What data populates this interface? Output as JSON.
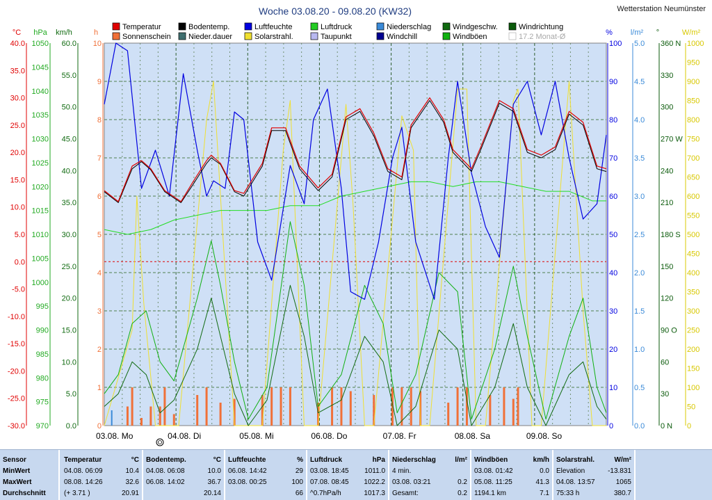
{
  "title": "Woche 03.08.20 - 09.08.20 (KW32)",
  "station": "Wetterstation Neumünster",
  "legend": [
    {
      "label": "Temperatur",
      "color": "#e00000"
    },
    {
      "label": "Bodentemp.",
      "color": "#000000"
    },
    {
      "label": "Luftfeuchte",
      "color": "#0000e0"
    },
    {
      "label": "Luftdruck",
      "color": "#22cc22"
    },
    {
      "label": "Niederschlag",
      "color": "#3a8ad8"
    },
    {
      "label": "Windgeschw.",
      "color": "#106a10"
    },
    {
      "label": "Windrichtung",
      "color": "#0a5a0a"
    },
    {
      "label": "Sonnenschein",
      "color": "#f07038"
    },
    {
      "label": "Nieder.dauer",
      "color": "#3f6f6f"
    },
    {
      "label": "Solarstrahl.",
      "color": "#f0e030"
    },
    {
      "label": "Taupunkt",
      "color": "#b8b8f0"
    },
    {
      "label": "Windchill",
      "color": "#000090"
    },
    {
      "label": "Windböen",
      "color": "#10b010"
    },
    {
      "label": "17.2 Monat-Ø",
      "color": "#d0d8e0"
    }
  ],
  "axis_units": {
    "temp": "°C",
    "press": "hPa",
    "wind": "km/h",
    "sun": "h",
    "humidity": "%",
    "rain": "l/m²",
    "dir": "°",
    "solar": "W/m²"
  },
  "axes": {
    "temp": {
      "labels": [
        "40.0",
        "35.0",
        "30.0",
        "25.0",
        "20.0",
        "15.0",
        "10.0",
        "5.0",
        "0.0",
        "-5.0",
        "-10.0",
        "-15.0",
        "-20.0",
        "-25.0",
        "-30.0"
      ],
      "color": "#e00000"
    },
    "press": {
      "labels": [
        "1050",
        "1045",
        "1040",
        "1035",
        "1030",
        "1025",
        "1020",
        "1015",
        "1010",
        "1005",
        "1000",
        "995",
        "990",
        "985",
        "980",
        "975",
        "970"
      ],
      "color": "#22aa22"
    },
    "wind": {
      "labels": [
        "60.0",
        "55.0",
        "50.0",
        "45.0",
        "40.0",
        "35.0",
        "30.0",
        "25.0",
        "20.0",
        "15.0",
        "10.0",
        "5.0",
        "0.0"
      ],
      "color": "#106a10"
    },
    "sun": {
      "labels": [
        "10",
        "9",
        "8",
        "7",
        "6",
        "5",
        "4",
        "3",
        "2",
        "1",
        "0"
      ],
      "color": "#f07038"
    },
    "humidity": {
      "labels": [
        "100",
        "90",
        "80",
        "70",
        "60",
        "50",
        "40",
        "30",
        "20",
        "10",
        "0"
      ],
      "color": "#0000e0"
    },
    "rain": {
      "labels": [
        "5.0",
        "4.5",
        "4.0",
        "3.5",
        "3.0",
        "2.5",
        "2.0",
        "1.5",
        "1.0",
        "0.5",
        "0.0"
      ],
      "color": "#3a8ad8"
    },
    "dir": {
      "labels": [
        "360 N",
        "330",
        "300",
        "270 W",
        "240",
        "210",
        "180 S",
        "150",
        "120",
        "90 O",
        "60",
        "30",
        "0 N"
      ],
      "color": "#0a5a0a"
    },
    "solar": {
      "labels": [
        "1000",
        "950",
        "900",
        "850",
        "800",
        "750",
        "700",
        "650",
        "600",
        "550",
        "500",
        "450",
        "400",
        "350",
        "300",
        "250",
        "200",
        "150",
        "100",
        "50",
        "0"
      ],
      "color": "#d8c800"
    }
  },
  "days": [
    "03.08.  Mo",
    "04.08.  Di",
    "05.08.  Mi",
    "06.08.  Do",
    "07.08.  Fr",
    "08.08.  Sa",
    "09.08.  So"
  ],
  "chart_data": {
    "type": "line",
    "title": "Woche 03.08.20 - 09.08.20 (KW32)",
    "x_unit": "hours since 03.08. 00:00",
    "temperature_C": [
      [
        0,
        13.0
      ],
      [
        6,
        11.0
      ],
      [
        12,
        17.5
      ],
      [
        16,
        18.5
      ],
      [
        20,
        17.0
      ],
      [
        26,
        13.0
      ],
      [
        33,
        11.0
      ],
      [
        38,
        14.5
      ],
      [
        44,
        18.5
      ],
      [
        46,
        19.5
      ],
      [
        50,
        18.0
      ],
      [
        56,
        13.0
      ],
      [
        60,
        12.5
      ],
      [
        68,
        18.0
      ],
      [
        72,
        24.5
      ],
      [
        78,
        24.5
      ],
      [
        84,
        17.5
      ],
      [
        92,
        13.5
      ],
      [
        98,
        16.0
      ],
      [
        104,
        26.5
      ],
      [
        110,
        28.0
      ],
      [
        116,
        23.5
      ],
      [
        122,
        17.0
      ],
      [
        128,
        15.5
      ],
      [
        132,
        25.0
      ],
      [
        140,
        30.0
      ],
      [
        146,
        26.0
      ],
      [
        150,
        20.5
      ],
      [
        158,
        17.0
      ],
      [
        162,
        21.0
      ],
      [
        170,
        29.5
      ],
      [
        176,
        28.0
      ],
      [
        182,
        20.5
      ],
      [
        188,
        19.5
      ],
      [
        194,
        21.0
      ],
      [
        200,
        27.5
      ],
      [
        206,
        25.5
      ],
      [
        212,
        17.5
      ],
      [
        216,
        17.0
      ]
    ],
    "soil_temp_C": [
      [
        0,
        12.8
      ],
      [
        6,
        10.8
      ],
      [
        12,
        17.0
      ],
      [
        16,
        18.3
      ],
      [
        20,
        16.8
      ],
      [
        26,
        12.8
      ],
      [
        33,
        10.8
      ],
      [
        38,
        14.0
      ],
      [
        44,
        18.0
      ],
      [
        46,
        19.0
      ],
      [
        50,
        17.8
      ],
      [
        56,
        12.8
      ],
      [
        60,
        12.0
      ],
      [
        68,
        17.5
      ],
      [
        72,
        24.0
      ],
      [
        78,
        24.0
      ],
      [
        84,
        17.0
      ],
      [
        92,
        13.0
      ],
      [
        98,
        15.5
      ],
      [
        104,
        26.0
      ],
      [
        110,
        27.5
      ],
      [
        116,
        23.0
      ],
      [
        122,
        16.5
      ],
      [
        128,
        15.0
      ],
      [
        132,
        24.5
      ],
      [
        140,
        29.5
      ],
      [
        146,
        25.5
      ],
      [
        150,
        20.0
      ],
      [
        158,
        16.5
      ],
      [
        162,
        20.5
      ],
      [
        170,
        29.0
      ],
      [
        176,
        27.5
      ],
      [
        182,
        20.0
      ],
      [
        188,
        19.0
      ],
      [
        194,
        20.5
      ],
      [
        200,
        27.0
      ],
      [
        206,
        25.0
      ],
      [
        212,
        17.0
      ],
      [
        216,
        16.5
      ]
    ],
    "humidity_pct": [
      [
        0,
        84
      ],
      [
        5,
        100
      ],
      [
        10,
        98
      ],
      [
        16,
        62
      ],
      [
        22,
        72
      ],
      [
        28,
        60
      ],
      [
        34,
        92
      ],
      [
        40,
        72
      ],
      [
        44,
        60
      ],
      [
        47,
        64
      ],
      [
        52,
        62
      ],
      [
        56,
        82
      ],
      [
        60,
        80
      ],
      [
        66,
        48
      ],
      [
        72,
        38
      ],
      [
        80,
        68
      ],
      [
        86,
        58
      ],
      [
        90,
        80
      ],
      [
        96,
        88
      ],
      [
        102,
        62
      ],
      [
        106,
        35
      ],
      [
        112,
        33
      ],
      [
        118,
        48
      ],
      [
        124,
        70
      ],
      [
        128,
        78
      ],
      [
        134,
        48
      ],
      [
        142,
        33
      ],
      [
        148,
        70
      ],
      [
        152,
        90
      ],
      [
        158,
        66
      ],
      [
        164,
        52
      ],
      [
        170,
        44
      ],
      [
        176,
        84
      ],
      [
        182,
        90
      ],
      [
        188,
        76
      ],
      [
        194,
        90
      ],
      [
        200,
        70
      ],
      [
        206,
        54
      ],
      [
        212,
        58
      ],
      [
        216,
        76
      ]
    ],
    "pressure_hPa": [
      [
        0,
        1011
      ],
      [
        10,
        1010
      ],
      [
        20,
        1011
      ],
      [
        30,
        1013
      ],
      [
        40,
        1014
      ],
      [
        50,
        1015
      ],
      [
        60,
        1015
      ],
      [
        70,
        1015
      ],
      [
        80,
        1016
      ],
      [
        92,
        1016
      ],
      [
        102,
        1018
      ],
      [
        112,
        1019
      ],
      [
        122,
        1020
      ],
      [
        132,
        1021
      ],
      [
        140,
        1021
      ],
      [
        150,
        1020
      ],
      [
        160,
        1021
      ],
      [
        170,
        1021
      ],
      [
        180,
        1020
      ],
      [
        190,
        1019
      ],
      [
        200,
        1019
      ],
      [
        210,
        1017
      ],
      [
        216,
        1017
      ]
    ],
    "wind_kmh": [
      [
        0,
        3
      ],
      [
        6,
        5
      ],
      [
        12,
        10
      ],
      [
        18,
        8
      ],
      [
        24,
        2
      ],
      [
        30,
        4
      ],
      [
        40,
        12
      ],
      [
        46,
        20
      ],
      [
        50,
        14
      ],
      [
        56,
        5
      ],
      [
        62,
        0
      ],
      [
        70,
        4
      ],
      [
        80,
        22
      ],
      [
        86,
        14
      ],
      [
        92,
        2
      ],
      [
        102,
        4
      ],
      [
        112,
        14
      ],
      [
        120,
        10
      ],
      [
        126,
        0
      ],
      [
        134,
        3
      ],
      [
        144,
        15
      ],
      [
        152,
        12
      ],
      [
        158,
        0
      ],
      [
        168,
        6
      ],
      [
        176,
        16
      ],
      [
        182,
        6
      ],
      [
        190,
        0
      ],
      [
        200,
        8
      ],
      [
        206,
        10
      ],
      [
        212,
        3
      ],
      [
        216,
        1
      ]
    ],
    "gust_kmh": [
      [
        0,
        5
      ],
      [
        6,
        8
      ],
      [
        12,
        16
      ],
      [
        18,
        18
      ],
      [
        24,
        10
      ],
      [
        30,
        7
      ],
      [
        40,
        20
      ],
      [
        46,
        29
      ],
      [
        50,
        22
      ],
      [
        56,
        10
      ],
      [
        62,
        1
      ],
      [
        70,
        6
      ],
      [
        80,
        32
      ],
      [
        86,
        22
      ],
      [
        92,
        3
      ],
      [
        102,
        8
      ],
      [
        112,
        22
      ],
      [
        120,
        16
      ],
      [
        126,
        2
      ],
      [
        134,
        8
      ],
      [
        144,
        24
      ],
      [
        152,
        21
      ],
      [
        158,
        1
      ],
      [
        168,
        12
      ],
      [
        176,
        25
      ],
      [
        182,
        14
      ],
      [
        190,
        1
      ],
      [
        200,
        14
      ],
      [
        206,
        20
      ],
      [
        212,
        6
      ],
      [
        216,
        2
      ]
    ],
    "sunshine_h": [
      [
        10,
        0.5
      ],
      [
        12,
        1.0
      ],
      [
        16,
        0.2
      ],
      [
        20,
        0.5
      ],
      [
        24,
        0.5
      ],
      [
        26,
        1.0
      ],
      [
        30,
        0.3
      ],
      [
        40,
        0.8
      ],
      [
        44,
        1.0
      ],
      [
        50,
        0.6
      ],
      [
        56,
        0.7
      ],
      [
        68,
        0.8
      ],
      [
        72,
        1.0
      ],
      [
        76,
        1.0
      ],
      [
        80,
        1.0
      ],
      [
        92,
        0.6
      ],
      [
        98,
        1.0
      ],
      [
        102,
        1.0
      ],
      [
        106,
        0.9
      ],
      [
        116,
        0.8
      ],
      [
        124,
        1.0
      ],
      [
        128,
        1.0
      ],
      [
        132,
        1.0
      ],
      [
        136,
        0.9
      ],
      [
        148,
        0.6
      ],
      [
        152,
        1.0
      ],
      [
        156,
        1.0
      ],
      [
        166,
        0.8
      ],
      [
        172,
        1.0
      ],
      [
        176,
        0.7
      ],
      [
        178,
        1.0
      ]
    ],
    "solar_Wm2": [
      [
        0,
        0
      ],
      [
        12,
        250
      ],
      [
        14,
        600
      ],
      [
        17,
        320
      ],
      [
        22,
        0
      ],
      [
        32,
        0
      ],
      [
        44,
        800
      ],
      [
        47,
        900
      ],
      [
        50,
        600
      ],
      [
        56,
        0
      ],
      [
        68,
        0
      ],
      [
        77,
        720
      ],
      [
        80,
        850
      ],
      [
        86,
        0
      ],
      [
        92,
        0
      ],
      [
        104,
        840
      ],
      [
        107,
        580
      ],
      [
        112,
        0
      ],
      [
        116,
        0
      ],
      [
        128,
        810
      ],
      [
        133,
        720
      ],
      [
        136,
        0
      ],
      [
        140,
        0
      ],
      [
        152,
        880
      ],
      [
        156,
        880
      ],
      [
        160,
        0
      ],
      [
        164,
        0
      ],
      [
        176,
        850
      ],
      [
        178,
        880
      ],
      [
        184,
        0
      ],
      [
        188,
        0
      ],
      [
        200,
        900
      ],
      [
        206,
        300
      ],
      [
        210,
        0
      ],
      [
        216,
        0
      ]
    ],
    "precip_l_m2": [
      [
        3.2,
        0.2
      ]
    ],
    "ranges": {
      "temperature": [
        -30,
        40
      ],
      "pressure": [
        970,
        1050
      ],
      "wind": [
        0,
        60
      ],
      "sunshine": [
        0,
        10
      ],
      "humidity": [
        0,
        100
      ],
      "rain": [
        0,
        5
      ],
      "direction": [
        0,
        360
      ],
      "solar": [
        0,
        1000
      ]
    }
  },
  "stats": {
    "rows": [
      "Sensor",
      "MinWert",
      "MaxWert",
      "Durchschnitt"
    ],
    "panels": [
      {
        "title": "Temperatur",
        "unit": "°C",
        "min": [
          "04.08.  06:09",
          "10.4"
        ],
        "max": [
          "08.08.  14:26",
          "32.6"
        ],
        "avg": [
          "(+ 3.71 )",
          "20.91"
        ]
      },
      {
        "title": "Bodentemp.",
        "unit": "°C",
        "min": [
          "04.08.  06:08",
          "10.0"
        ],
        "max": [
          "06.08.  14:02",
          "36.7"
        ],
        "avg": [
          "",
          "20.14"
        ]
      },
      {
        "title": "Luftfeuchte",
        "unit": "%",
        "min": [
          "06.08.  14:42",
          "29"
        ],
        "max": [
          "03.08.  00:25",
          "100"
        ],
        "avg": [
          "",
          "66"
        ]
      },
      {
        "title": "Luftdruck",
        "unit": "hPa",
        "min": [
          "03.08.  18:45",
          "1011.0"
        ],
        "max": [
          "07.08.  08:45",
          "1022.2"
        ],
        "avg": [
          "^0.7hPa/h",
          "1017.3"
        ]
      },
      {
        "title": "Niederschlag",
        "unit": "l/m²",
        "min": [
          "4 min.",
          ""
        ],
        "max": [
          "03.08.  03:21",
          "0.2"
        ],
        "avg": [
          "Gesamt:",
          "0.2"
        ]
      },
      {
        "title": "Windböen",
        "unit": "km/h",
        "min": [
          "03.08.  01:42",
          "0.0"
        ],
        "max": [
          "05.08.  11:25",
          "41.3"
        ],
        "avg": [
          "1194.1 km",
          "7.1"
        ]
      },
      {
        "title": "Solarstrahl.",
        "unit": "W/m²",
        "min": [
          "Elevation",
          "-13.831"
        ],
        "max": [
          "04.08.  13:57",
          "1065"
        ],
        "avg": [
          "75:33 h",
          "380.7"
        ]
      }
    ]
  }
}
